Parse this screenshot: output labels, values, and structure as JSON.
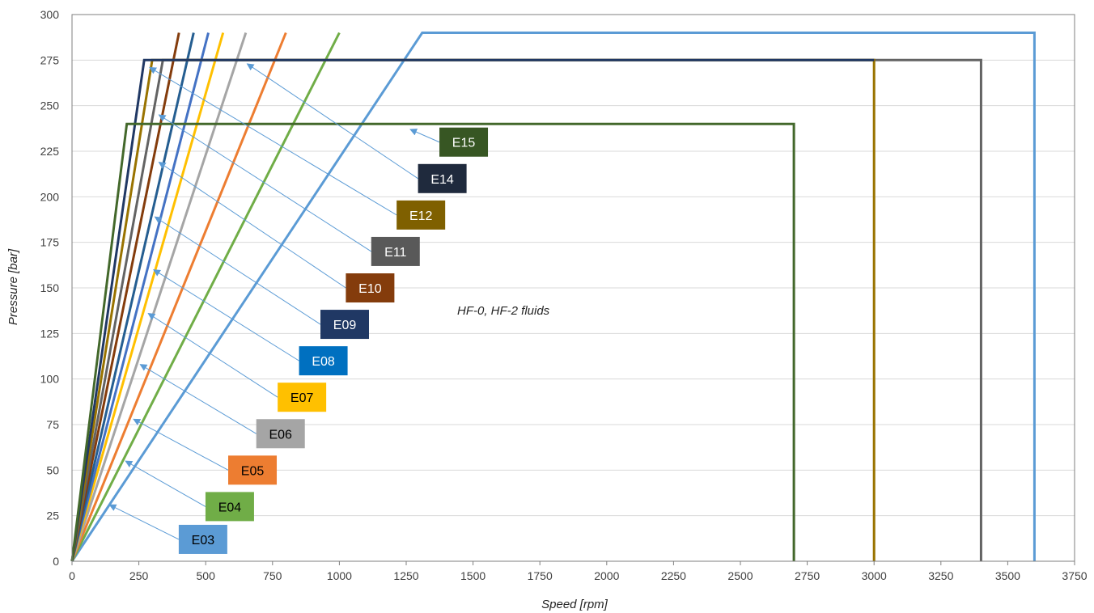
{
  "chart_data": {
    "type": "line",
    "title": "",
    "xlabel": "Speed [rpm]",
    "ylabel": "Pressure [bar]",
    "xlim": [
      0,
      3750
    ],
    "ylim": [
      0,
      300
    ],
    "xticks": [
      0,
      250,
      500,
      750,
      1000,
      1250,
      1500,
      1750,
      2000,
      2250,
      2500,
      2750,
      3000,
      3250,
      3500,
      3750
    ],
    "yticks": [
      0,
      25,
      50,
      75,
      100,
      125,
      150,
      175,
      200,
      225,
      250,
      275,
      300
    ],
    "grid": "horizontal",
    "annotation": "HF-0,  HF-2 fluids",
    "series": [
      {
        "name": "E03",
        "color": "#5b9bd5",
        "text_color": "#000000",
        "points": [
          [
            0,
            0
          ],
          [
            1310,
            290
          ],
          [
            3600,
            290
          ],
          [
            3600,
            0
          ]
        ]
      },
      {
        "name": "E04",
        "color": "#70ad47",
        "text_color": "#000000",
        "points": [
          [
            0,
            0
          ],
          [
            1000,
            290
          ]
        ]
      },
      {
        "name": "E05",
        "color": "#ed7d31",
        "text_color": "#000000",
        "points": [
          [
            0,
            0
          ],
          [
            800,
            290
          ]
        ]
      },
      {
        "name": "E06",
        "color": "#a5a5a5",
        "text_color": "#000000",
        "points": [
          [
            0,
            0
          ],
          [
            650,
            290
          ]
        ]
      },
      {
        "name": "E07",
        "color": "#ffc000",
        "text_color": "#000000",
        "points": [
          [
            0,
            0
          ],
          [
            565,
            290
          ]
        ]
      },
      {
        "name": "E08",
        "color": "#4472c4",
        "text_color": "#ffffff",
        "points": [
          [
            0,
            0
          ],
          [
            510,
            290
          ]
        ]
      },
      {
        "name": "E09",
        "color": "#255e91",
        "text_color": "#ffffff",
        "points": [
          [
            0,
            0
          ],
          [
            455,
            290
          ]
        ]
      },
      {
        "name": "E10",
        "color": "#843c0c",
        "text_color": "#ffffff",
        "points": [
          [
            0,
            0
          ],
          [
            400,
            290
          ]
        ]
      },
      {
        "name": "E11",
        "color": "#636363",
        "text_color": "#ffffff",
        "points": [
          [
            0,
            0
          ],
          [
            340,
            275
          ],
          [
            3400,
            275
          ],
          [
            3400,
            0
          ]
        ]
      },
      {
        "name": "E12",
        "color": "#997300",
        "text_color": "#ffffff",
        "points": [
          [
            0,
            0
          ],
          [
            300,
            275
          ],
          [
            3000,
            275
          ],
          [
            3000,
            0
          ]
        ]
      },
      {
        "name": "E14",
        "color": "#203864",
        "text_color": "#ffffff",
        "points": [
          [
            0,
            0
          ],
          [
            270,
            275
          ],
          [
            3000,
            275
          ]
        ]
      },
      {
        "name": "E15",
        "color": "#43682b",
        "text_color": "#ffffff",
        "points": [
          [
            0,
            0
          ],
          [
            205,
            240
          ],
          [
            2700,
            240
          ],
          [
            2700,
            0
          ]
        ]
      }
    ],
    "labels": [
      {
        "text": "E03",
        "color": "#5b9bd5",
        "text_color": "#000000",
        "at": [
          490,
          12
        ],
        "target": [
          140,
          31
        ]
      },
      {
        "text": "E04",
        "color": "#70ad47",
        "text_color": "#000000",
        "at": [
          590,
          30
        ],
        "target": [
          200,
          55
        ]
      },
      {
        "text": "E05",
        "color": "#ed7d31",
        "text_color": "#000000",
        "at": [
          675,
          50
        ],
        "target": [
          230,
          78
        ]
      },
      {
        "text": "E06",
        "color": "#a5a5a5",
        "text_color": "#000000",
        "at": [
          780,
          70
        ],
        "target": [
          255,
          108
        ]
      },
      {
        "text": "E07",
        "color": "#ffc000",
        "text_color": "#000000",
        "at": [
          860,
          90
        ],
        "target": [
          285,
          136
        ]
      },
      {
        "text": "E08",
        "color": "#0070c0",
        "text_color": "#ffffff",
        "at": [
          940,
          110
        ],
        "target": [
          305,
          160
        ]
      },
      {
        "text": "E09",
        "color": "#203864",
        "text_color": "#ffffff",
        "at": [
          1020,
          130
        ],
        "target": [
          310,
          189
        ]
      },
      {
        "text": "E10",
        "color": "#843c0c",
        "text_color": "#ffffff",
        "at": [
          1115,
          150
        ],
        "target": [
          325,
          219
        ]
      },
      {
        "text": "E11",
        "color": "#595959",
        "text_color": "#ffffff",
        "at": [
          1210,
          170
        ],
        "target": [
          325,
          245
        ]
      },
      {
        "text": "E12",
        "color": "#7f6000",
        "text_color": "#ffffff",
        "at": [
          1305,
          190
        ],
        "target": [
          290,
          271
        ]
      },
      {
        "text": "E14",
        "color": "#1f2a3d",
        "text_color": "#ffffff",
        "at": [
          1385,
          210
        ],
        "target": [
          655,
          273
        ]
      },
      {
        "text": "E15",
        "color": "#375623",
        "text_color": "#ffffff",
        "at": [
          1465,
          230
        ],
        "target": [
          1265,
          237
        ]
      }
    ]
  }
}
